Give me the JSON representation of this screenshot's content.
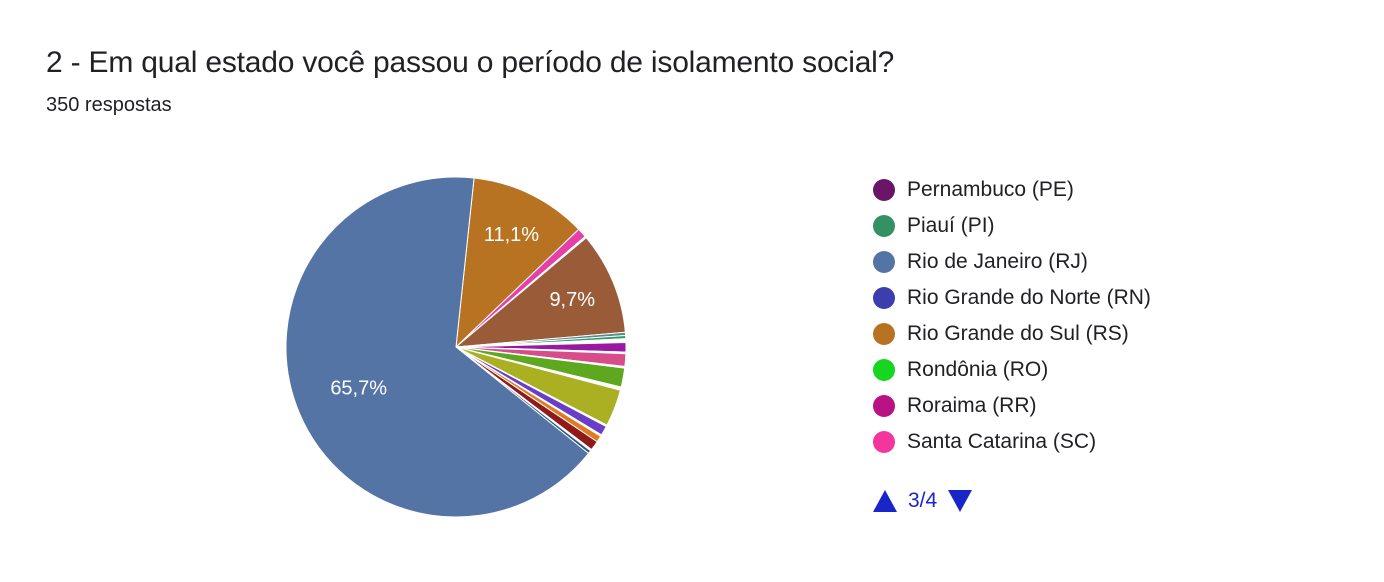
{
  "title": "2 - Em qual estado você passou o período de isolamento social?",
  "subtitle": "350 respostas",
  "chart_data": {
    "type": "pie",
    "start_angle_deg": 6.1,
    "slices": [
      {
        "color": "#b77322",
        "value": 11.1,
        "label": "11,1%"
      },
      {
        "color": "#e63fa5",
        "value": 0.9,
        "label": ""
      },
      {
        "color": "#ffffff",
        "value": 0.15,
        "label": ""
      },
      {
        "color": "#9a5c38",
        "value": 9.7,
        "label": "9,7%"
      },
      {
        "color": "#5a8a8a",
        "value": 0.3,
        "label": ""
      },
      {
        "color": "#2e9a6a",
        "value": 0.3,
        "label": ""
      },
      {
        "color": "#ffffff",
        "value": 0.35,
        "label": ""
      },
      {
        "color": "#991a9f",
        "value": 0.9,
        "label": ""
      },
      {
        "color": "#ffffff",
        "value": 0.15,
        "label": ""
      },
      {
        "color": "#d64d8a",
        "value": 1.2,
        "label": ""
      },
      {
        "color": "#ffffff",
        "value": 0.15,
        "label": ""
      },
      {
        "color": "#5ea820",
        "value": 1.8,
        "label": ""
      },
      {
        "color": "#ffffff",
        "value": 0.3,
        "label": ""
      },
      {
        "color": "#aab022",
        "value": 3.5,
        "label": ""
      },
      {
        "color": "#ffffff",
        "value": 0.15,
        "label": ""
      },
      {
        "color": "#6a3fc8",
        "value": 0.9,
        "label": ""
      },
      {
        "color": "#ffffff",
        "value": 0.15,
        "label": ""
      },
      {
        "color": "#e07b22",
        "value": 0.6,
        "label": ""
      },
      {
        "color": "#8f1a1a",
        "value": 0.9,
        "label": ""
      },
      {
        "color": "#ffffff",
        "value": 0.15,
        "label": ""
      },
      {
        "color": "#2a5f8a",
        "value": 0.3,
        "label": ""
      },
      {
        "color": "#5574a6",
        "value": 65.7,
        "label": "65,7%"
      }
    ],
    "legend": [
      {
        "label": "Pernambuco (PE)",
        "color": "#6b1567"
      },
      {
        "label": "Piauí (PI)",
        "color": "#339164"
      },
      {
        "label": "Rio de Janeiro (RJ)",
        "color": "#5574a6"
      },
      {
        "label": "Rio Grande do Norte (RN)",
        "color": "#3b3eac"
      },
      {
        "label": "Rio Grande do Sul (RS)",
        "color": "#b77322"
      },
      {
        "label": "Rondônia (RO)",
        "color": "#16d620"
      },
      {
        "label": "Roraima (RR)",
        "color": "#b91383"
      },
      {
        "label": "Santa Catarina (SC)",
        "color": "#f4359e"
      }
    ],
    "legend_position": "right"
  },
  "pager": {
    "text": "3/4",
    "color": "#1a25c9"
  }
}
